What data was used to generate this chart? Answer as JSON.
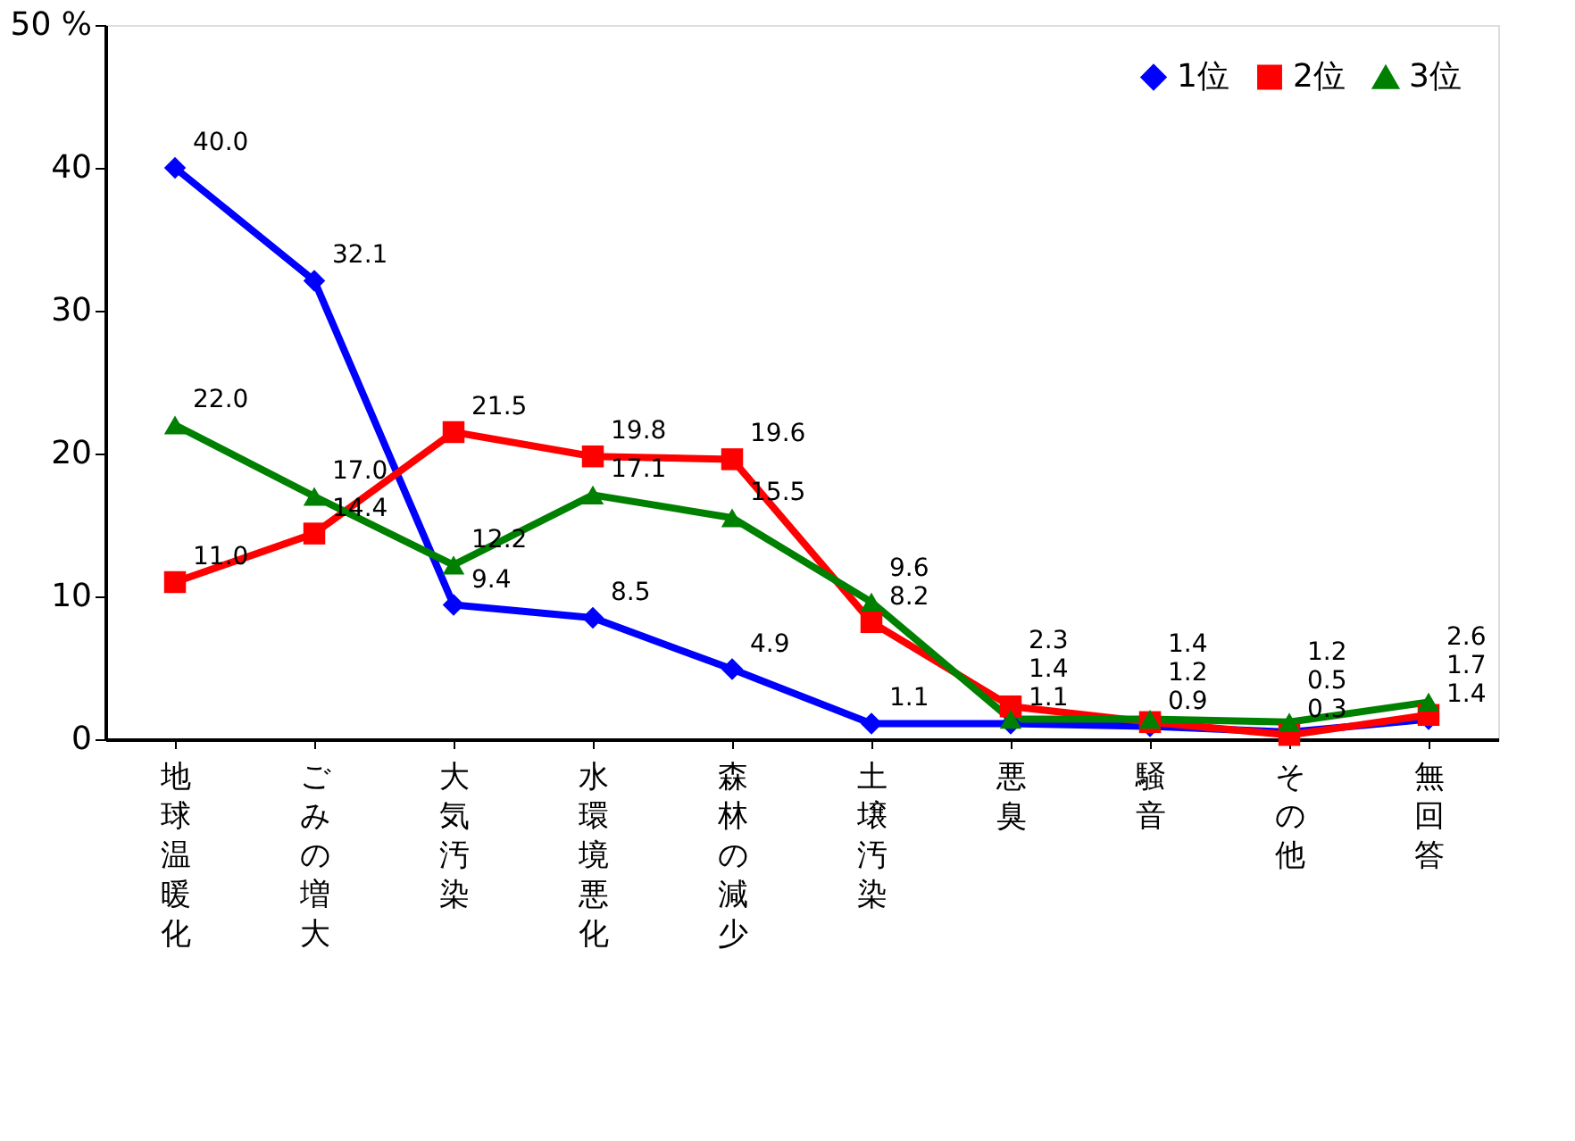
{
  "chart_data": {
    "type": "line",
    "categories": [
      "地球温暖化",
      "ごみの増大",
      "大気汚染",
      "水環境悪化",
      "森林の減少",
      "土壌汚染",
      "悪臭",
      "騒音",
      "その他",
      "無回答"
    ],
    "series": [
      {
        "name": "1位",
        "color": "#0000ff",
        "marker": "diamond",
        "values": [
          40.0,
          32.1,
          9.4,
          8.5,
          4.9,
          1.1,
          1.1,
          0.9,
          0.5,
          1.4
        ],
        "value_labels": [
          "40.0",
          "32.1",
          "9.4",
          "8.5",
          "4.9",
          "1.1",
          "1.1",
          "0.9",
          "0.5",
          "1.4"
        ]
      },
      {
        "name": "2位",
        "color": "#ff0000",
        "marker": "square",
        "values": [
          11.0,
          14.4,
          21.5,
          19.8,
          19.6,
          8.2,
          2.3,
          1.2,
          0.3,
          1.7
        ],
        "value_labels": [
          "11.0",
          "14.4",
          "21.5",
          "19.8",
          "19.6",
          "8.2",
          "2.3",
          "1.2",
          "0.3",
          "1.7"
        ]
      },
      {
        "name": "3位",
        "color": "#008000",
        "marker": "triangle",
        "values": [
          22.0,
          17.0,
          12.2,
          17.1,
          15.5,
          9.6,
          1.4,
          1.4,
          1.2,
          2.6
        ],
        "value_labels": [
          "22.0",
          "17.0",
          "12.2",
          "17.1",
          "15.5",
          "9.6",
          "1.4",
          "1.4",
          "1.2",
          "2.6"
        ]
      }
    ],
    "ylim": [
      0,
      50
    ],
    "yticks": [
      0,
      10,
      20,
      30,
      40,
      {
        "value": 50,
        "label": "50 %"
      }
    ],
    "grid": false,
    "legend": "top right"
  }
}
